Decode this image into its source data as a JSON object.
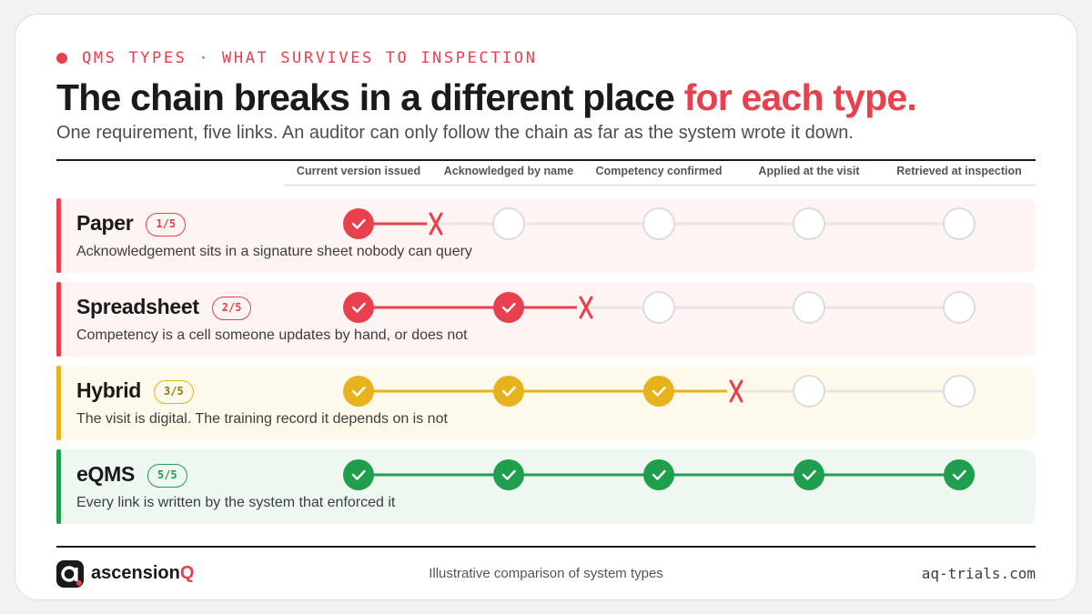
{
  "eyebrow": "QMS TYPES · WHAT SURVIVES TO INSPECTION",
  "headline": {
    "main": "The chain breaks in a different place",
    "accent": "for each type."
  },
  "subtitle": "One requirement, five links. An auditor can only follow the chain as far as the system wrote it down.",
  "columns": [
    "Current version issued",
    "Acknowledged by name",
    "Competency confirmed",
    "Applied at the visit",
    "Retrieved at inspection"
  ],
  "rows": [
    {
      "name": "Paper",
      "badge": "1/5",
      "description": "Acknowledgement sits in a signature sheet nobody can query",
      "passed": 1,
      "color": "#e8404d",
      "bg": "#fdf4f3"
    },
    {
      "name": "Spreadsheet",
      "badge": "2/5",
      "description": "Competency is a cell someone updates by hand, or does not",
      "passed": 2,
      "color": "#e8404d",
      "bg": "#fdf4f3"
    },
    {
      "name": "Hybrid",
      "badge": "3/5",
      "description": "The visit is digital. The training record it depends on is not",
      "passed": 3,
      "color": "#e8b21c",
      "bg": "#fefaeb"
    },
    {
      "name": "eQMS",
      "badge": "5/5",
      "description": "Every link is written by the system that enforced it",
      "passed": 5,
      "color": "#1f9e4e",
      "bg": "#eff7f1"
    }
  ],
  "footer": {
    "brand_main": "ascension",
    "brand_accent": "Q",
    "note": "Illustrative comparison of system types",
    "site": "aq-trials.com"
  },
  "colors": {
    "accent": "#e8404d",
    "ink": "#1a1a1a",
    "muted_line": "#e6e6e6",
    "empty_node_stroke": "#dcdcdc"
  },
  "icons": {
    "check": "check-icon",
    "break": "x-mark-icon",
    "logo": "ascensionq-logo-icon"
  }
}
